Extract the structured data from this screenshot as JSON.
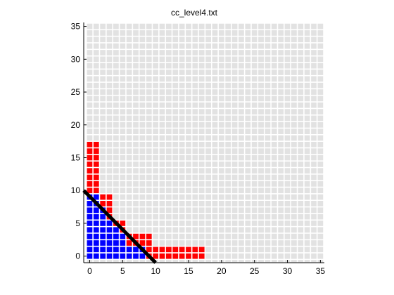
{
  "chart_data": {
    "type": "heatmap",
    "title": "cc_level4.txt",
    "xlabel": "",
    "ylabel": "",
    "xlim": [
      -0.9,
      35.6
    ],
    "ylim": [
      -1.0,
      35.6
    ],
    "xticks": [
      0,
      5,
      10,
      15,
      20,
      25,
      30,
      35
    ],
    "yticks": [
      0,
      5,
      10,
      15,
      20,
      25,
      30,
      35
    ],
    "grid": true,
    "cell_colors": {
      "empty": "#e2e2e2",
      "blue": "#0000ff",
      "red": "#ff0000"
    },
    "cell_rows": [
      {
        "y": 17,
        "blue": [],
        "red": [
          [
            0,
            1
          ]
        ]
      },
      {
        "y": 16,
        "blue": [],
        "red": [
          [
            0,
            1
          ]
        ]
      },
      {
        "y": 15,
        "blue": [],
        "red": [
          [
            0,
            1
          ]
        ]
      },
      {
        "y": 14,
        "blue": [],
        "red": [
          [
            0,
            1
          ]
        ]
      },
      {
        "y": 13,
        "blue": [],
        "red": [
          [
            0,
            1
          ]
        ]
      },
      {
        "y": 12,
        "blue": [],
        "red": [
          [
            0,
            1
          ]
        ]
      },
      {
        "y": 11,
        "blue": [],
        "red": [
          [
            0,
            1
          ]
        ]
      },
      {
        "y": 10,
        "blue": [],
        "red": [
          [
            0,
            1
          ]
        ]
      },
      {
        "y": 9,
        "blue": [
          [
            0,
            1
          ]
        ],
        "red": [
          [
            2,
            3
          ]
        ]
      },
      {
        "y": 8,
        "blue": [
          [
            0,
            1
          ]
        ],
        "red": [
          [
            2,
            3
          ]
        ]
      },
      {
        "y": 7,
        "blue": [
          [
            0,
            2
          ]
        ],
        "red": [
          [
            3,
            3
          ]
        ]
      },
      {
        "y": 6,
        "blue": [
          [
            0,
            2
          ]
        ],
        "red": [
          [
            3,
            3
          ]
        ]
      },
      {
        "y": 5,
        "blue": [
          [
            0,
            3
          ]
        ],
        "red": [
          [
            4,
            5
          ]
        ]
      },
      {
        "y": 4,
        "blue": [
          [
            0,
            4
          ]
        ],
        "red": [
          [
            5,
            5
          ]
        ]
      },
      {
        "y": 3,
        "blue": [
          [
            0,
            5
          ]
        ],
        "red": [
          [
            6,
            9
          ]
        ]
      },
      {
        "y": 2,
        "blue": [
          [
            0,
            5
          ]
        ],
        "red": [
          [
            6,
            9
          ]
        ]
      },
      {
        "y": 1,
        "blue": [
          [
            0,
            8
          ]
        ],
        "red": [
          [
            9,
            17
          ]
        ]
      },
      {
        "y": 0,
        "blue": [
          [
            0,
            8
          ]
        ],
        "red": [
          [
            9,
            17
          ]
        ]
      }
    ],
    "line": {
      "color": "#000000",
      "points": [
        [
          -0.9,
          10.0
        ],
        [
          10.0,
          -1.0
        ]
      ]
    }
  }
}
